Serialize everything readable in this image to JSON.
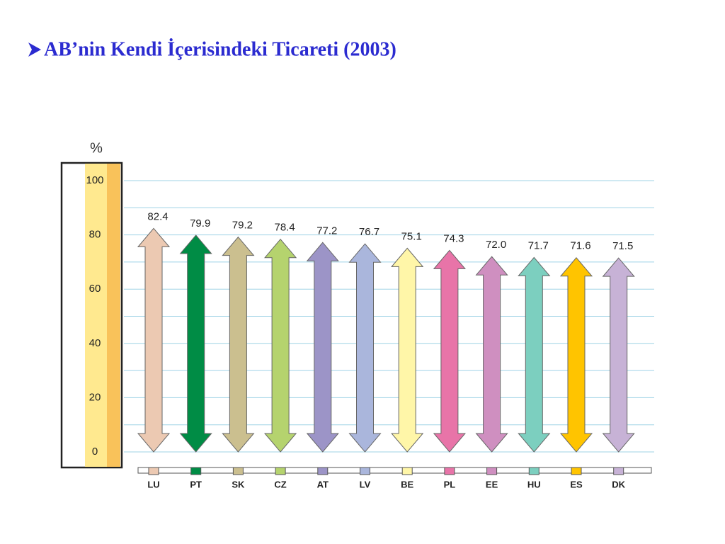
{
  "chart_data": {
    "type": "double-arrow",
    "title": "AB’nin Kendi İçerisindeki Ticareti (2003)",
    "y_label": "%",
    "categories": [
      "LU",
      "PT",
      "SK",
      "CZ",
      "AT",
      "LV",
      "BE",
      "PL",
      "EE",
      "HU",
      "ES",
      "DK"
    ],
    "values": [
      82.4,
      79.9,
      79.2,
      78.4,
      77.2,
      76.7,
      75.1,
      74.3,
      72.0,
      71.7,
      71.6,
      71.5
    ],
    "value_labels": [
      "82.4",
      "79.9",
      "79.2",
      "78.4",
      "77.2",
      "76.7",
      "75.1",
      "74.3",
      "72.0",
      "71.7",
      "71.6",
      "71.5"
    ],
    "colors": [
      "#ecc9b2",
      "#008c45",
      "#cbbf8f",
      "#b5d36e",
      "#9c94c7",
      "#aab6dc",
      "#fff6a8",
      "#e874a8",
      "#cf8fc0",
      "#7ccfbf",
      "#ffc400",
      "#c7b2d6"
    ],
    "ylim": [
      0,
      100
    ],
    "yticks": [
      0,
      20,
      40,
      60,
      80,
      100
    ],
    "minor_yticks": [
      10,
      30,
      50,
      70,
      90
    ],
    "grid": true
  }
}
